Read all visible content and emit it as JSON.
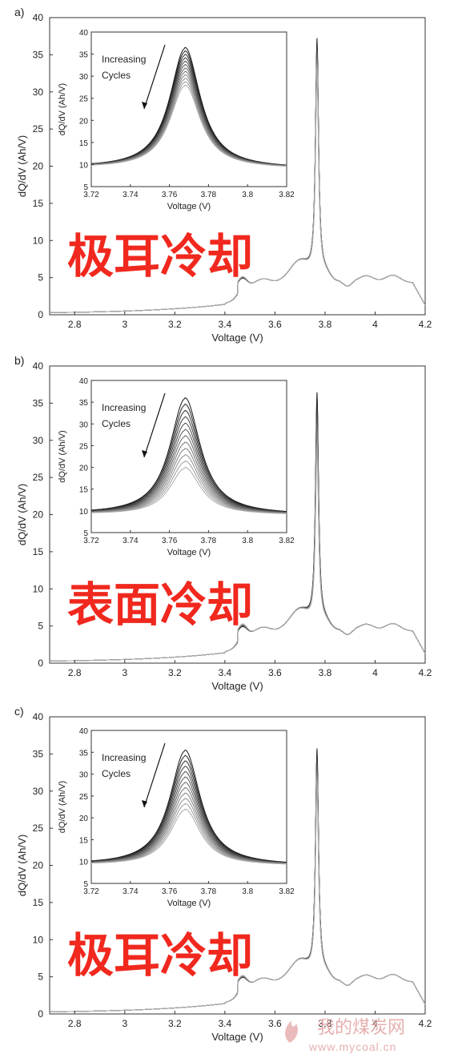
{
  "panels": [
    {
      "letter": "a)",
      "overlay_label": "极耳冷却",
      "annotation_line1": "Increasing",
      "annotation_line2": "Cycles",
      "fade": 0.2
    },
    {
      "letter": "b)",
      "overlay_label": "表面冷却",
      "annotation_line1": "Increasing",
      "annotation_line2": "Cycles",
      "fade": 0.33
    },
    {
      "letter": "c)",
      "overlay_label": "极耳冷却",
      "annotation_line1": "Increasing",
      "annotation_line2": "Cycles",
      "fade": 0.24
    }
  ],
  "watermark": {
    "text": "我的煤炭网",
    "url": "www.mycoal.cn"
  },
  "chart_data": [
    {
      "type": "line",
      "panel": "a)",
      "xlabel": "Voltage (V)",
      "ylabel": "dQ/dV (Ah/V)",
      "xlim": [
        2.7,
        4.2
      ],
      "ylim": [
        0,
        40
      ],
      "x_ticks": [
        "2.8",
        "3",
        "3.2",
        "3.4",
        "3.6",
        "3.8",
        "4",
        "4.2"
      ],
      "y_ticks": [
        "0",
        "5",
        "10",
        "15",
        "20",
        "25",
        "30",
        "35",
        "40"
      ],
      "peak_range": [
        33,
        37
      ],
      "inset": {
        "xlabel": "Voltage (V)",
        "ylabel": "dQ/dV (Ah/V)",
        "xlim": [
          3.72,
          3.82
        ],
        "ylim": [
          5,
          40
        ],
        "x_ticks": [
          "3.72",
          "3.74",
          "3.76",
          "3.78",
          "3.8",
          "3.82"
        ],
        "y_ticks": [
          "5",
          "10",
          "15",
          "20",
          "25",
          "30",
          "35",
          "40"
        ],
        "peak_range": [
          28,
          36.5
        ]
      }
    },
    {
      "type": "line",
      "panel": "b)",
      "xlabel": "Voltage (V)",
      "ylabel": "dQ/dV (Ah/V)",
      "xlim": [
        2.7,
        4.2
      ],
      "ylim": [
        0,
        40
      ],
      "x_ticks": [
        "2.8",
        "3",
        "3.2",
        "3.4",
        "3.6",
        "3.8",
        "4",
        "4.2"
      ],
      "y_ticks": [
        "0",
        "5",
        "10",
        "15",
        "20",
        "25",
        "30",
        "35",
        "40"
      ],
      "peak_range": [
        29,
        36.2
      ],
      "inset": {
        "xlabel": "Voltage (V)",
        "ylabel": "dQ/dV (Ah/V)",
        "xlim": [
          3.72,
          3.82
        ],
        "ylim": [
          5,
          40
        ],
        "x_ticks": [
          "3.72",
          "3.74",
          "3.76",
          "3.78",
          "3.8",
          "3.82"
        ],
        "y_ticks": [
          "5",
          "10",
          "15",
          "20",
          "25",
          "30",
          "35",
          "40"
        ],
        "peak_range": [
          20,
          36
        ]
      }
    },
    {
      "type": "line",
      "panel": "c)",
      "xlabel": "Voltage (V)",
      "ylabel": "dQ/dV (Ah/V)",
      "xlim": [
        2.7,
        4.2
      ],
      "ylim": [
        0,
        40
      ],
      "x_ticks": [
        "2.8",
        "3",
        "3.2",
        "3.4",
        "3.6",
        "3.8",
        "4",
        "4.2"
      ],
      "y_ticks": [
        "0",
        "5",
        "10",
        "15",
        "20",
        "25",
        "30",
        "35",
        "40"
      ],
      "peak_range": [
        31,
        35.5
      ],
      "inset": {
        "xlabel": "Voltage (V)",
        "ylabel": "dQ/dV (Ah/V)",
        "xlim": [
          3.72,
          3.82
        ],
        "ylim": [
          5,
          40
        ],
        "x_ticks": [
          "3.72",
          "3.74",
          "3.76",
          "3.78",
          "3.8",
          "3.82"
        ],
        "y_ticks": [
          "5",
          "10",
          "15",
          "20",
          "25",
          "30",
          "35",
          "40"
        ],
        "peak_range": [
          22,
          35.5
        ]
      }
    }
  ]
}
